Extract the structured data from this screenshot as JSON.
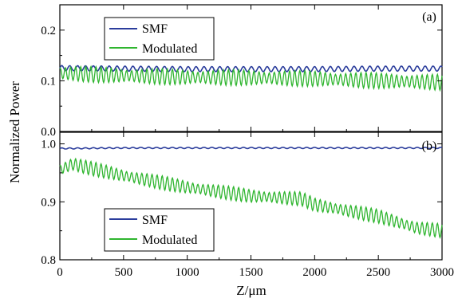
{
  "chart_data": [
    {
      "type": "line",
      "panel_label": "(a)",
      "x_range": [
        0,
        3000
      ],
      "ylim": [
        0.0,
        0.25
      ],
      "y_ticks": [
        "0.0",
        "0.1",
        "0.2"
      ],
      "y_tick_values": [
        0.0,
        0.1,
        0.2
      ],
      "ylabel": "Normalized Power",
      "legend_position": "top-left",
      "series": [
        {
          "name": "SMF",
          "color": "#2b3d9c",
          "x": [
            0,
            500,
            1000,
            1500,
            2000,
            2500,
            3000
          ],
          "y": [
            0.125,
            0.124,
            0.123,
            0.123,
            0.123,
            0.124,
            0.124
          ],
          "oscillation_amplitude": 0.005
        },
        {
          "name": "Modulated",
          "color": "#2fb52f",
          "x": [
            0,
            500,
            1000,
            1500,
            2000,
            2500,
            3000
          ],
          "y": [
            0.115,
            0.11,
            0.107,
            0.106,
            0.104,
            0.1,
            0.097
          ],
          "oscillation_amplitude": 0.013
        }
      ]
    },
    {
      "type": "line",
      "panel_label": "(b)",
      "x_range": [
        0,
        3000
      ],
      "ylim": [
        0.8,
        1.02
      ],
      "y_ticks": [
        "0.8",
        "0.9",
        "1.0"
      ],
      "y_tick_values": [
        0.8,
        0.9,
        1.0
      ],
      "xlabel": "Z/μm",
      "x_ticks": [
        "0",
        "500",
        "1000",
        "1500",
        "2000",
        "2500",
        "3000"
      ],
      "x_tick_values": [
        0,
        500,
        1000,
        1500,
        2000,
        2500,
        3000
      ],
      "legend_position": "bottom-left",
      "series": [
        {
          "name": "SMF",
          "color": "#2b3d9c",
          "x": [
            0,
            500,
            1000,
            1500,
            2000,
            2500,
            3000
          ],
          "y": [
            0.992,
            0.993,
            0.993,
            0.993,
            0.993,
            0.993,
            0.993
          ],
          "oscillation_amplitude": 0.001
        },
        {
          "name": "Modulated",
          "color": "#2fb52f",
          "x": [
            0,
            100,
            500,
            1000,
            1500,
            1900,
            2000,
            2500,
            2800,
            3000
          ],
          "y": [
            0.955,
            0.965,
            0.945,
            0.925,
            0.91,
            0.905,
            0.895,
            0.875,
            0.855,
            0.85
          ],
          "oscillation_amplitude": 0.01
        }
      ]
    }
  ]
}
